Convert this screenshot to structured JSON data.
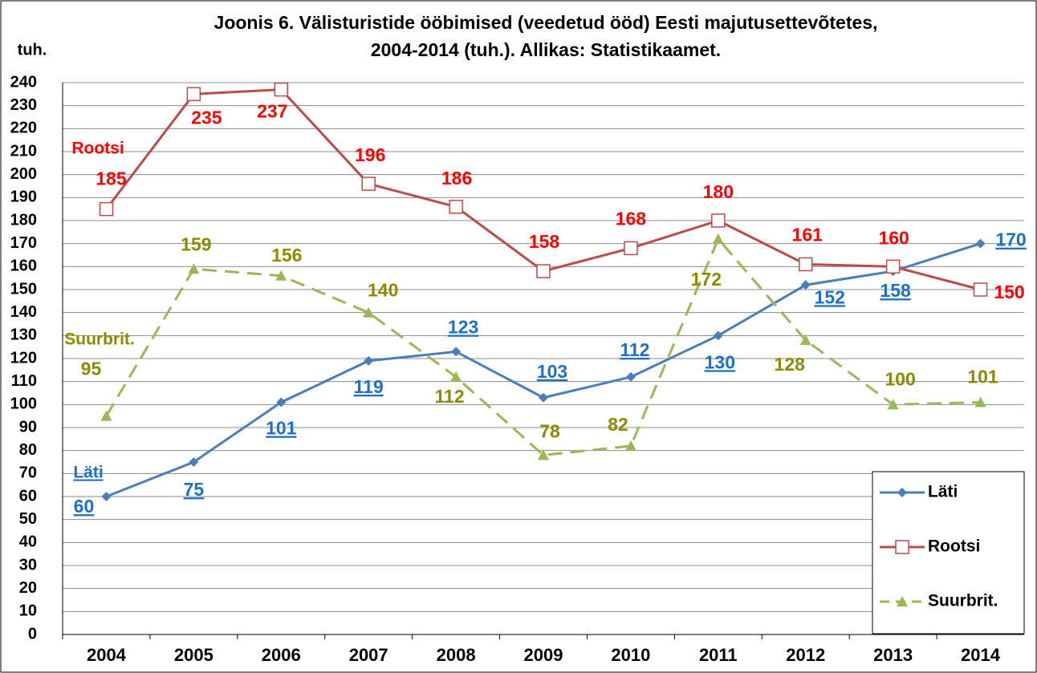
{
  "chart_data": {
    "type": "line",
    "title": "Joonis 6. Välisturistide ööbimised (veedetud ööd) Eesti majutusettevõtetes,",
    "subtitle": "2004-2014 (tuh.).  Allikas: Statistikaamet.",
    "y_label": "tuh.",
    "categories": [
      "2004",
      "2005",
      "2006",
      "2007",
      "2008",
      "2009",
      "2010",
      "2011",
      "2012",
      "2013",
      "2014"
    ],
    "series": [
      {
        "name": "Läti",
        "color": "#4a7ebb",
        "label_color": "#1f6fc5",
        "marker": "diamond",
        "values": [
          60,
          75,
          101,
          119,
          123,
          103,
          112,
          130,
          152,
          158,
          170
        ]
      },
      {
        "name": "Rootsi",
        "color": "#be4b48",
        "label_color": "#ff0000",
        "marker": "square",
        "values": [
          185,
          235,
          237,
          196,
          186,
          158,
          168,
          180,
          161,
          160,
          150
        ]
      },
      {
        "name": "Suurbrit.",
        "color": "#98b954",
        "label_color": "#8b8b00",
        "marker": "triangle",
        "dashed": true,
        "values": [
          95,
          159,
          156,
          140,
          112,
          78,
          82,
          172,
          128,
          100,
          101
        ]
      }
    ],
    "annotations": [
      {
        "text": "Läti"
      },
      {
        "text": "Rootsi"
      },
      {
        "text": "Suurbrit."
      }
    ],
    "ylim": [
      0,
      240
    ],
    "yticks": [
      0,
      10,
      20,
      30,
      40,
      50,
      60,
      70,
      80,
      90,
      100,
      110,
      120,
      130,
      140,
      150,
      160,
      170,
      180,
      190,
      200,
      210,
      220,
      230,
      240
    ],
    "grid": true,
    "legend": "lower right"
  }
}
